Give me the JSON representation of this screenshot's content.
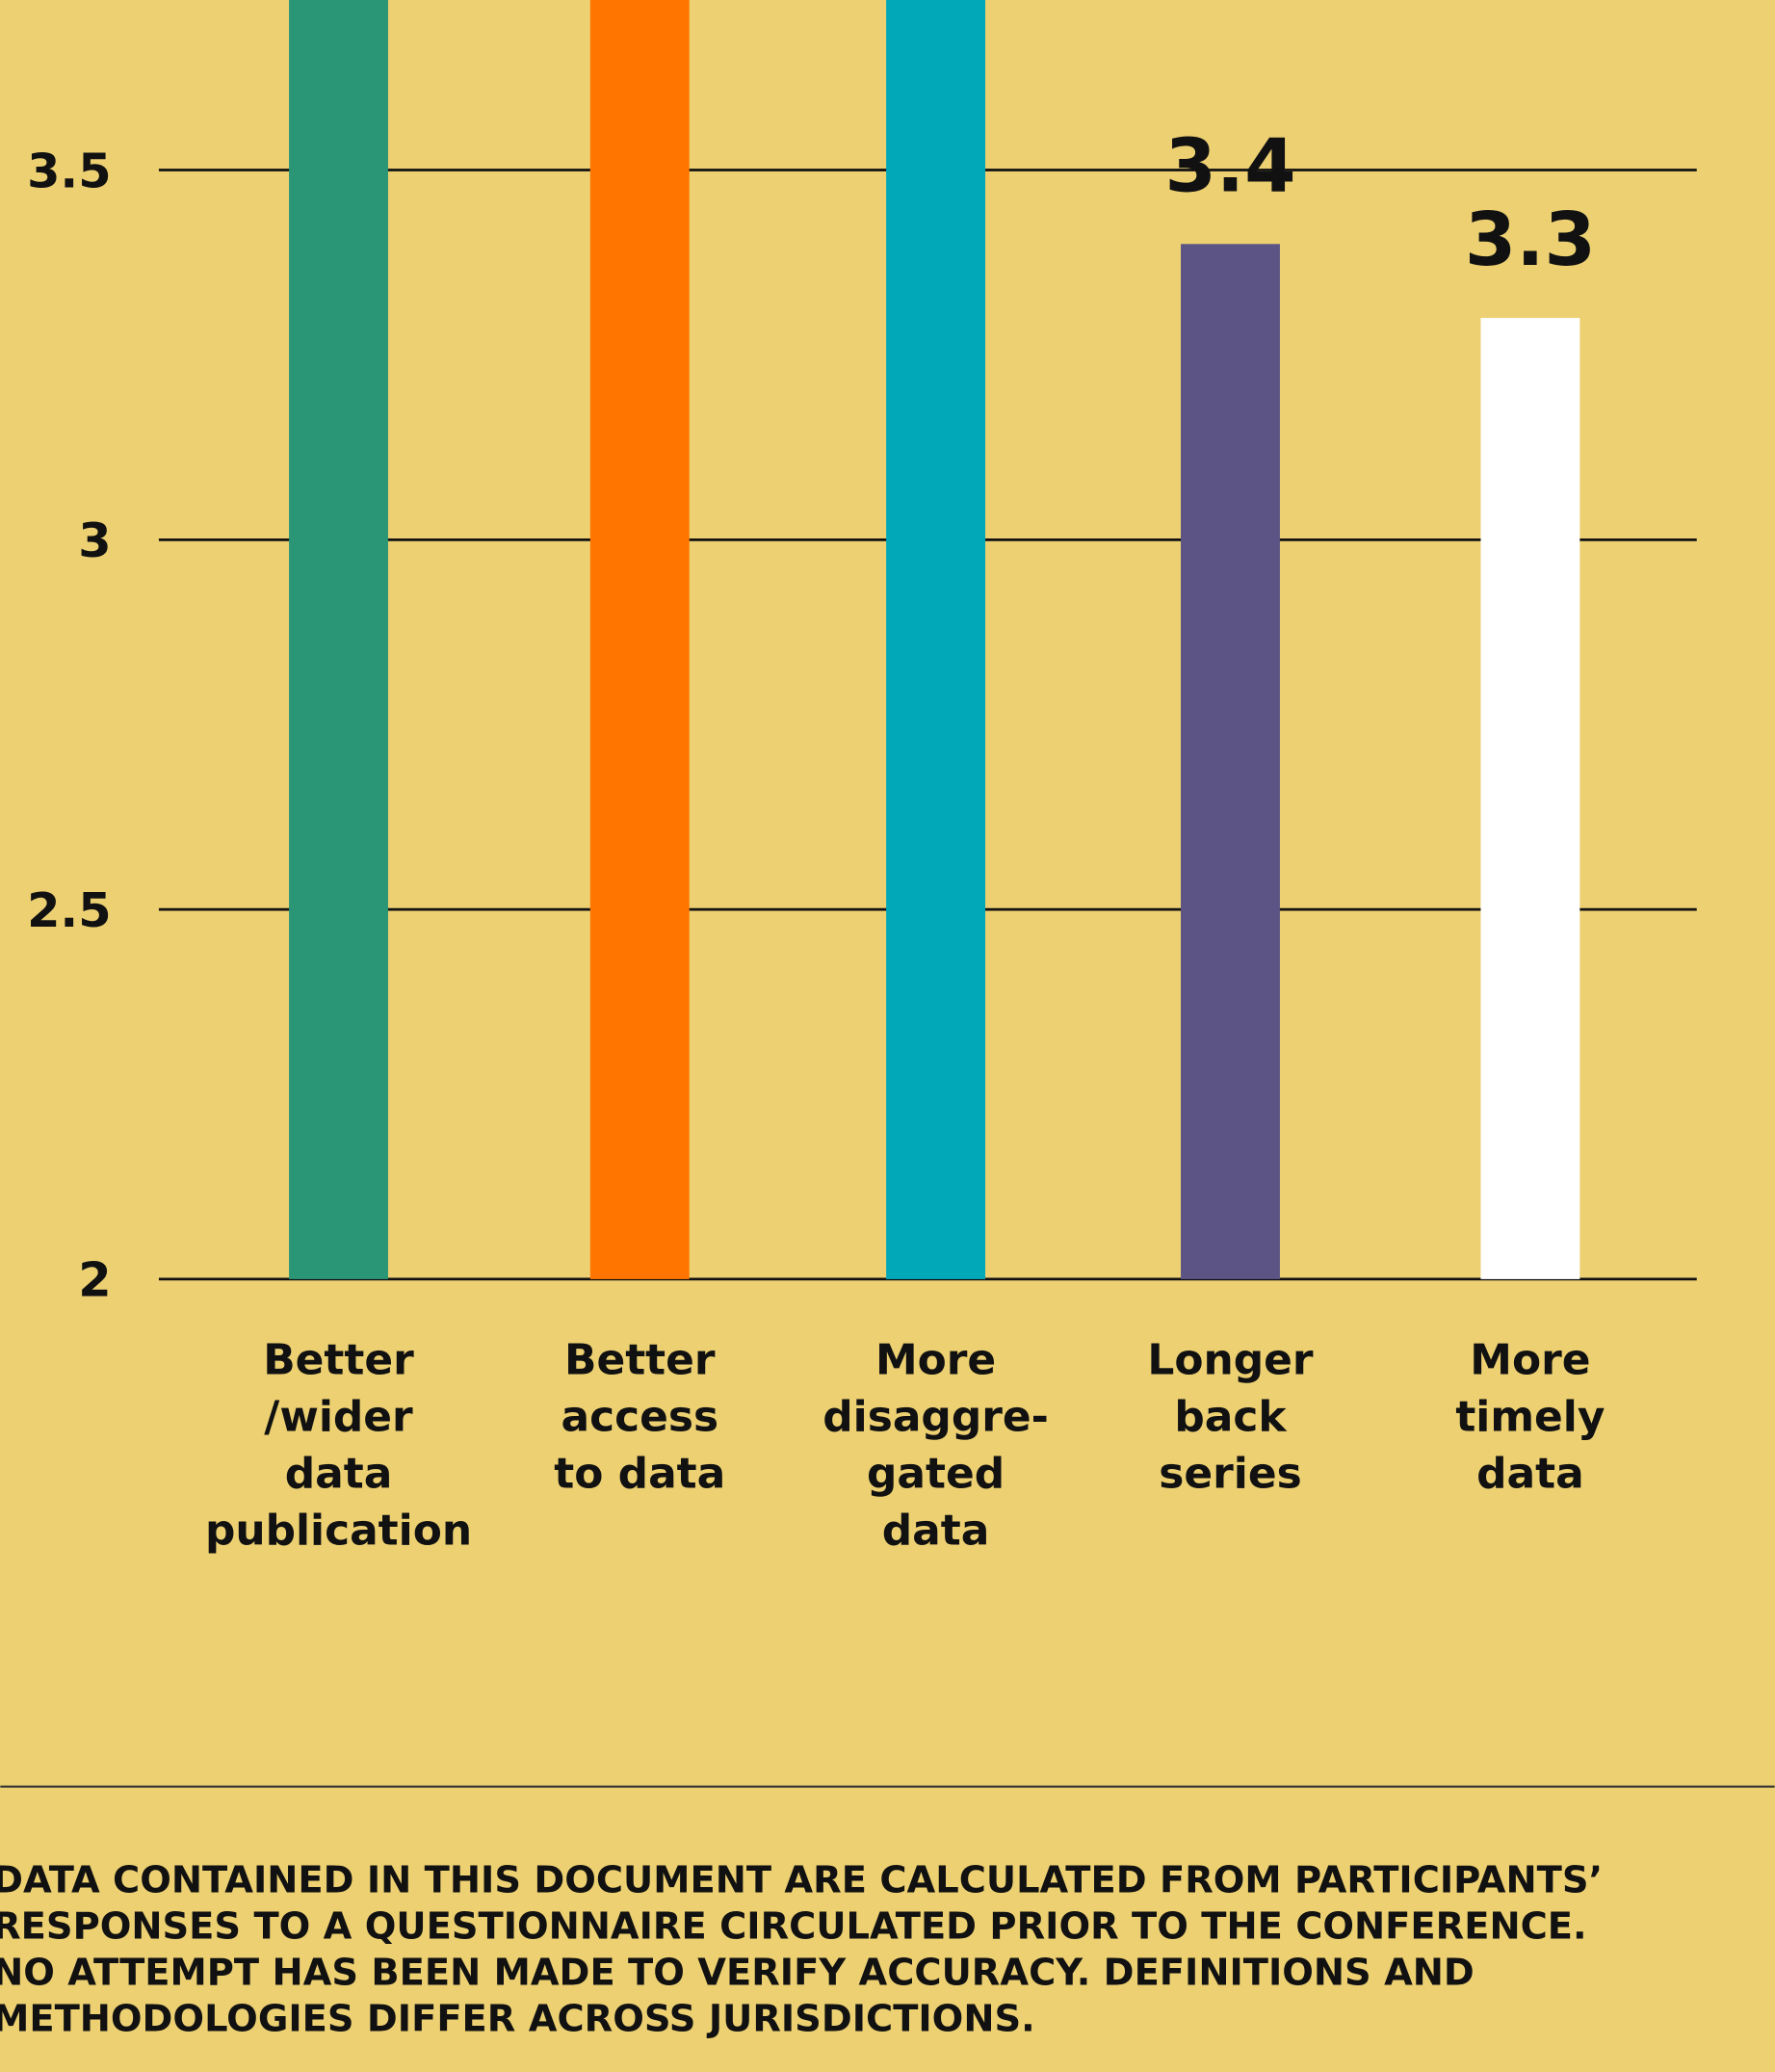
{
  "chart_data": {
    "type": "bar",
    "categories": [
      "Better\n/wider\ndata\npublication",
      "Better\naccess\nto data",
      "More\ndisaggre-\ngated\ndata",
      "Longer\nback\nseries",
      "More\ntimely\ndata"
    ],
    "values": [
      3.9,
      3.85,
      3.8,
      3.4,
      3.3
    ],
    "colors": [
      "#2a9676",
      "#ff7500",
      "#00a8b8",
      "#5b5485",
      "#ffffff"
    ],
    "value_labels": [
      null,
      null,
      null,
      "3.4",
      "3.3"
    ],
    "ylim": [
      2,
      3.73
    ],
    "yticks": [
      2,
      2.5,
      3,
      3.5
    ],
    "grid": true
  },
  "footnote": [
    "DATA CONTAINED IN THIS DOCUMENT ARE CALCULATED FROM PARTICIPANTS’",
    "RESPONSES TO A QUESTIONNAIRE CIRCULATED PRIOR TO THE CONFERENCE.",
    "NO ATTEMPT HAS BEEN MADE TO VERIFY ACCURACY. DEFINITIONS AND",
    "METHODOLOGIES DIFFER ACROSS JURISDICTIONS."
  ]
}
